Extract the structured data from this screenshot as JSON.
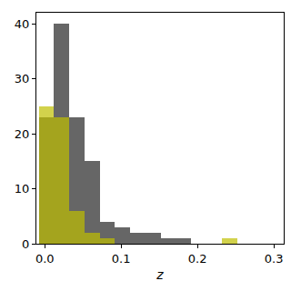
{
  "chart_data": {
    "type": "histogram",
    "x_label": "z",
    "bins": [
      -0.008,
      0.012,
      0.032,
      0.052,
      0.072,
      0.092,
      0.112,
      0.132,
      0.152,
      0.172,
      0.192,
      0.212,
      0.232,
      0.252,
      0.272,
      0.292
    ],
    "series": [
      {
        "color": "#555555",
        "values": [
          23,
          40,
          23,
          15,
          4,
          3,
          2,
          2,
          1,
          1,
          0,
          0,
          0,
          0,
          0
        ]
      },
      {
        "color": "#bfbf00",
        "values": [
          25,
          23,
          6,
          2,
          1,
          0,
          0,
          0,
          0,
          0,
          0,
          0,
          1,
          0,
          0
        ]
      }
    ],
    "stacked": false,
    "xlim": [
      -0.011,
      0.313
    ],
    "ylim": [
      0,
      42
    ],
    "xticks": [
      {
        "value": 0,
        "label": "0.0"
      },
      0.1,
      0.2,
      0.3
    ],
    "yticks": [
      0,
      10,
      20,
      30,
      40
    ],
    "grid": false
  }
}
